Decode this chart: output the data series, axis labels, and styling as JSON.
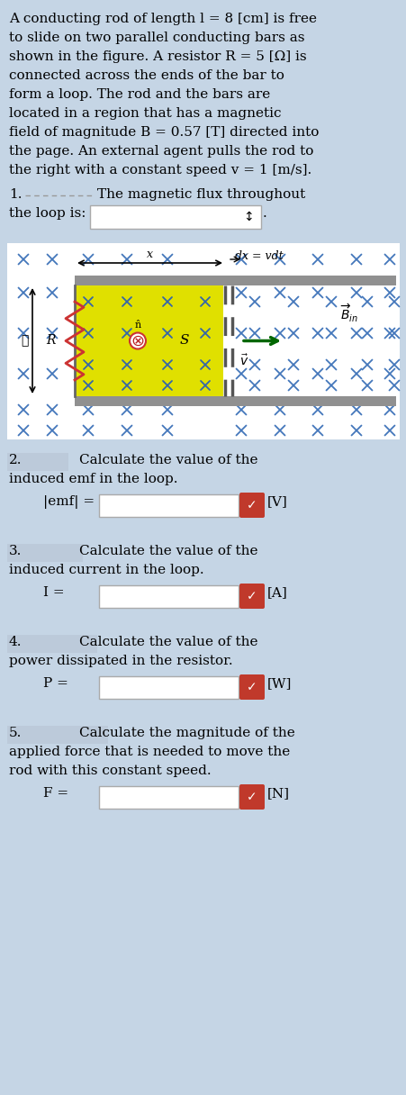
{
  "bg_color": "#c5d5e5",
  "white_bg": "#ffffff",
  "yellow_fill": "#e0e000",
  "bar_color": "#909090",
  "check_green": "#c0392b",
  "check_red": "#c0392b",
  "x_color": "#4477bb",
  "arrow_color": "#006600",
  "resistor_color": "#cc3333",
  "title_lines": [
    "A conducting rod of length l = 8 [cm] is free",
    "to slide on two parallel conducting bars as",
    "shown in the figure. A resistor R = 5 [Ω] is",
    "connected across the ends of the bar to",
    "form a loop. The rod and the bars are",
    "located in a region that has a magnetic",
    "field of magnitude B = 0.57 [T] directed into",
    "the page. An external agent pulls the rod to",
    "the right with a constant speed v = 1 [m/s]."
  ],
  "fs_title": 11.0,
  "fs_label": 11.0,
  "lh": 21
}
